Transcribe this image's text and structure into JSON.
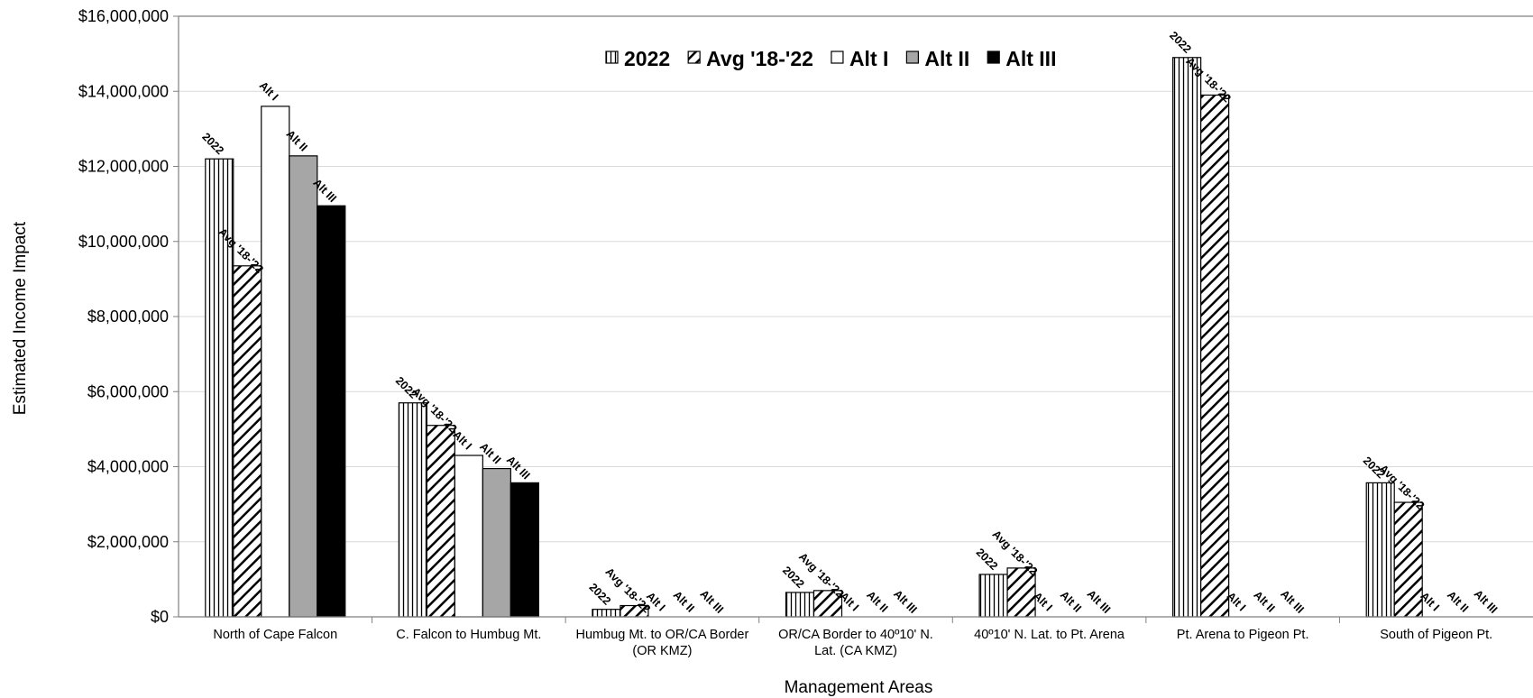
{
  "chart_data": {
    "type": "bar",
    "title": "",
    "xlabel": "Management Areas",
    "ylabel": "Estimated Income Impact",
    "ylim": [
      0,
      16000000
    ],
    "yticks": [
      "$0",
      "$2,000,000",
      "$4,000,000",
      "$6,000,000",
      "$8,000,000",
      "$10,000,000",
      "$12,000,000",
      "$14,000,000",
      "$16,000,000"
    ],
    "grid": true,
    "legend_position": "top-center",
    "categories": [
      [
        "North of Cape Falcon"
      ],
      [
        "C. Falcon to Humbug Mt."
      ],
      [
        "Humbug Mt. to OR/CA Border",
        "(OR KMZ)"
      ],
      [
        "OR/CA Border to 40º10' N.",
        "Lat. (CA KMZ)"
      ],
      [
        "40º10' N. Lat. to Pt. Arena"
      ],
      [
        "Pt. Arena to Pigeon Pt."
      ],
      [
        "South of Pigeon Pt."
      ]
    ],
    "series": [
      {
        "name": "2022",
        "pattern": "vertical",
        "values": [
          12200000,
          5700000,
          200000,
          650000,
          1130000,
          14900000,
          3570000
        ]
      },
      {
        "name": "Avg '18-'22",
        "pattern": "diagonal",
        "values": [
          9350000,
          5100000,
          300000,
          700000,
          1300000,
          13900000,
          3050000
        ]
      },
      {
        "name": "Alt I",
        "pattern": "white",
        "values": [
          13600000,
          4300000,
          0,
          0,
          0,
          0,
          0
        ]
      },
      {
        "name": "Alt II",
        "pattern": "gray",
        "values": [
          12280000,
          3950000,
          0,
          0,
          0,
          0,
          0
        ]
      },
      {
        "name": "Alt III",
        "pattern": "black",
        "values": [
          10950000,
          3570000,
          0,
          0,
          0,
          0,
          0
        ]
      }
    ],
    "colors": {
      "axis": "#808080",
      "gray_fill": "#a6a6a6",
      "black_fill": "#000000",
      "grid": "#d9d9d9"
    }
  }
}
